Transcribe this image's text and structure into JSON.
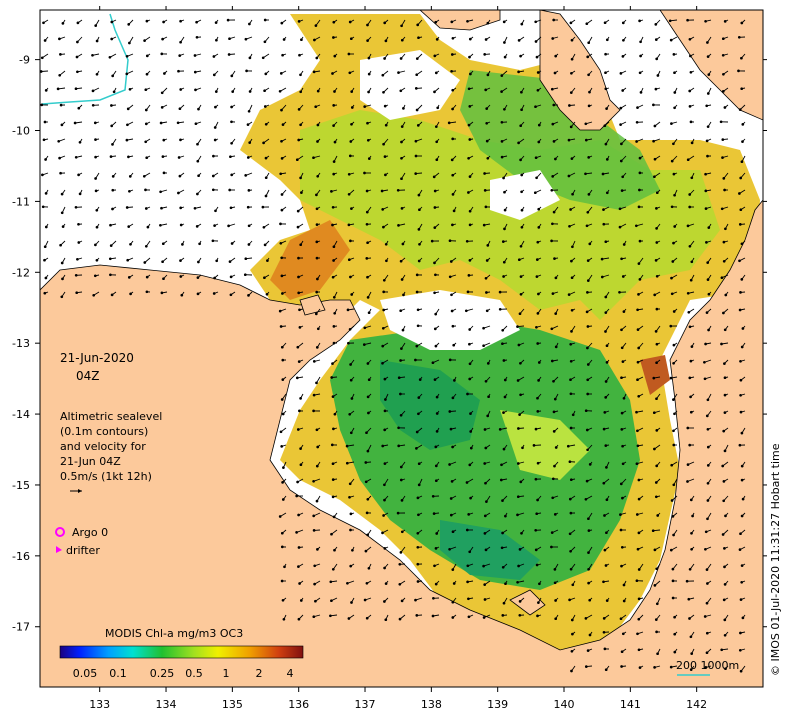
{
  "map": {
    "lon_ticks": [
      "133",
      "134",
      "135",
      "136",
      "137",
      "138",
      "139",
      "140",
      "141",
      "142"
    ],
    "lat_ticks": [
      "-9",
      "-10",
      "-11",
      "-12",
      "-13",
      "-14",
      "-15",
      "-16",
      "-17"
    ],
    "lon_range": [
      132.1,
      143.0
    ],
    "lat_range": [
      -17.85,
      -8.3
    ]
  },
  "date_block": {
    "date": "21-Jun-2020",
    "time": "04Z"
  },
  "info_block": {
    "line1": "Altimetric sealevel",
    "line2": "(0.1m contours)",
    "line3": "and velocity for",
    "line4": "21-Jun 04Z",
    "line5": "0.5m/s (1kt 12h)"
  },
  "legend": {
    "argo_label": "Argo 0",
    "drifter_label": "drifter",
    "argo_color": "#ff00ff",
    "drifter_color": "#ff00ff"
  },
  "colorbar": {
    "title": "MODIS Chl-a mg/m3 OC3",
    "ticks": [
      "0.05",
      "0.1",
      "0.25",
      "0.5",
      "1",
      "2",
      "4"
    ]
  },
  "scale": {
    "label": "200  1000m"
  },
  "credit": {
    "text": "© IMOS 01-Jul-2020 11:31:27 Hobart time"
  },
  "colors": {
    "land": "#fcc99b",
    "ocean_nodata": "#ffffff",
    "frame": "#000000",
    "isobath": "#33cccc"
  }
}
